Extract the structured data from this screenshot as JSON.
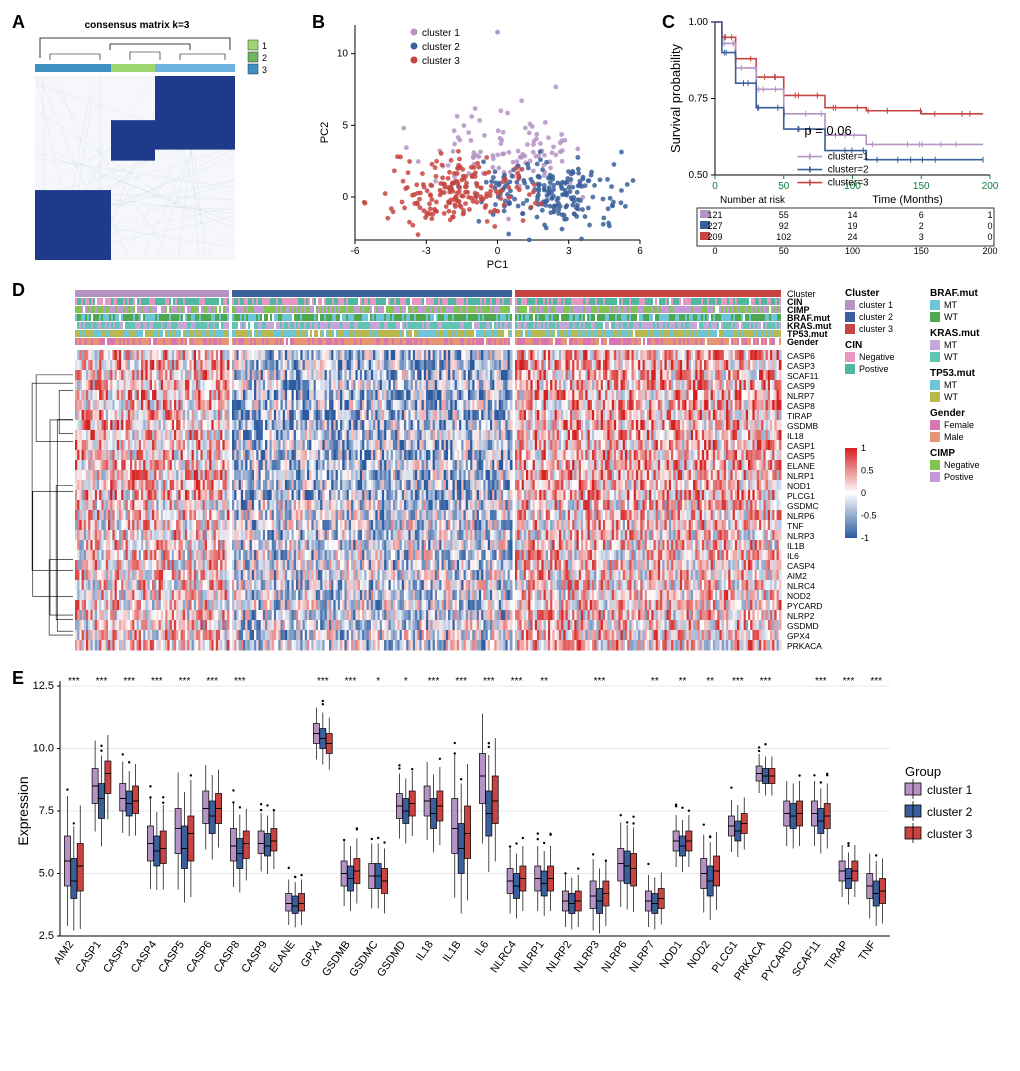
{
  "panelA": {
    "label": "A",
    "title": "consensus matrix k=3",
    "title_fontsize": 10,
    "legend_items": [
      "1",
      "2",
      "3"
    ],
    "legend_colors": [
      "#9ed670",
      "#6fb75e",
      "#3f8fc5"
    ],
    "cluster_bar_colors": [
      "#3f8fc5",
      "#9ed670",
      "#6db5e0"
    ],
    "cluster_bar_widths": [
      0.38,
      0.22,
      0.4
    ],
    "matrix_color": "#1e3a8a",
    "background": "#ffffff"
  },
  "panelB": {
    "label": "B",
    "type": "scatter",
    "xlabel": "PC1",
    "ylabel": "PC2",
    "xlim": [
      -6,
      6
    ],
    "ylim": [
      -3,
      12
    ],
    "xticks": [
      -6,
      -3,
      0,
      3,
      6
    ],
    "yticks": [
      0,
      5,
      10
    ],
    "legend": [
      {
        "label": "cluster 1",
        "color": "#b593c4"
      },
      {
        "label": "cluster 2",
        "color": "#3a5f9a"
      },
      {
        "label": "cluster 3",
        "color": "#c74440"
      }
    ],
    "label_fontsize": 11
  },
  "panelC": {
    "label": "C",
    "type": "km",
    "ylabel": "Survival probability",
    "xlabel": "Time (Months)",
    "ylim": [
      0.5,
      1.0
    ],
    "yticks": [
      0.5,
      0.75,
      1.0
    ],
    "xlim": [
      0,
      200
    ],
    "xticks": [
      0,
      50,
      100,
      150,
      200
    ],
    "pvalue_text": "p = 0.06",
    "legend": [
      {
        "label": "cluster=1",
        "color": "#b593c4"
      },
      {
        "label": "cluster=2",
        "color": "#3a5f9a"
      },
      {
        "label": "cluster=3",
        "color": "#c74440"
      }
    ],
    "risk_title": "Number at risk",
    "risk_table": [
      {
        "color": "#b593c4",
        "counts": [
          121,
          55,
          14,
          6,
          1
        ]
      },
      {
        "color": "#3a5f9a",
        "counts": [
          227,
          92,
          19,
          2,
          0
        ]
      },
      {
        "color": "#c74440",
        "counts": [
          209,
          102,
          24,
          3,
          0
        ]
      }
    ],
    "curves": {
      "cluster1": [
        [
          0,
          1.0
        ],
        [
          5,
          0.93
        ],
        [
          15,
          0.85
        ],
        [
          30,
          0.78
        ],
        [
          50,
          0.7
        ],
        [
          80,
          0.63
        ],
        [
          110,
          0.6
        ],
        [
          150,
          0.6
        ],
        [
          195,
          0.6
        ]
      ],
      "cluster2": [
        [
          0,
          1.0
        ],
        [
          5,
          0.9
        ],
        [
          15,
          0.8
        ],
        [
          30,
          0.72
        ],
        [
          50,
          0.65
        ],
        [
          80,
          0.58
        ],
        [
          110,
          0.55
        ],
        [
          150,
          0.55
        ],
        [
          195,
          0.55
        ]
      ],
      "cluster3": [
        [
          0,
          1.0
        ],
        [
          5,
          0.95
        ],
        [
          15,
          0.88
        ],
        [
          30,
          0.82
        ],
        [
          50,
          0.76
        ],
        [
          80,
          0.72
        ],
        [
          110,
          0.71
        ],
        [
          150,
          0.7
        ],
        [
          195,
          0.7
        ]
      ]
    }
  },
  "panelD": {
    "label": "D",
    "type": "heatmap",
    "genes": [
      "CASP6",
      "CASP3",
      "SCAF11",
      "CASP9",
      "NLRP7",
      "CASP8",
      "TIRAP",
      "GSDMB",
      "IL18",
      "CASP1",
      "CASP5",
      "ELANE",
      "NLRP1",
      "NOD1",
      "PLCG1",
      "GSDMC",
      "NLRP6",
      "TNF",
      "NLRP3",
      "IL1B",
      "IL6",
      "CASP4",
      "AIM2",
      "NLRC4",
      "NOD2",
      "PYCARD",
      "NLRP2",
      "GSDMD",
      "GPX4",
      "PRKACA"
    ],
    "annotations": [
      "Cluster",
      "CIN",
      "CIMP",
      "BRAF.mut",
      "KRAS.mut",
      "TP53.mut",
      "Gender"
    ],
    "colorbar": {
      "min": -1,
      "max": 1,
      "ticks": [
        -1,
        -0.5,
        0,
        0.5,
        1
      ],
      "low": "#2b5aa0",
      "mid": "#ffffff",
      "high": "#d62020"
    },
    "legend_groups": {
      "Cluster": [
        {
          "label": "cluster 1",
          "color": "#b593c4"
        },
        {
          "label": "cluster 2",
          "color": "#3a5f9a"
        },
        {
          "label": "cluster 3",
          "color": "#c74440"
        }
      ],
      "CIN": [
        {
          "label": "Negative",
          "color": "#e599c2"
        },
        {
          "label": "Postive",
          "color": "#4fb8a0"
        }
      ],
      "BRAF.mut": [
        {
          "label": "MT",
          "color": "#6cc5d9"
        },
        {
          "label": "WT",
          "color": "#4fa84f"
        }
      ],
      "KRAS.mut": [
        {
          "label": "MT",
          "color": "#c5a8d9"
        },
        {
          "label": "WT",
          "color": "#5fc5b0"
        }
      ],
      "TP53.mut": [
        {
          "label": "MT",
          "color": "#6cc5d9"
        },
        {
          "label": "WT",
          "color": "#b8b84f"
        }
      ],
      "Gender": [
        {
          "label": "Female",
          "color": "#d975b0"
        },
        {
          "label": "Male",
          "color": "#e89575"
        }
      ],
      "CIMP": [
        {
          "label": "Negative",
          "color": "#7fc54f"
        },
        {
          "label": "Postive",
          "color": "#c599d9"
        }
      ]
    },
    "block_widths": [
      0.22,
      0.4,
      0.38
    ]
  },
  "panelE": {
    "label": "E",
    "type": "boxplot",
    "ylabel": "Expression",
    "ylim": [
      2.5,
      12.5
    ],
    "yticks": [
      2.5,
      5.0,
      7.5,
      10.0,
      12.5
    ],
    "genes": [
      "AIM2",
      "CASP1",
      "CASP3",
      "CASP4",
      "CASP5",
      "CASP6",
      "CASP8",
      "CASP9",
      "ELANE",
      "GPX4",
      "GSDMB",
      "GSDMC",
      "GSDMD",
      "IL18",
      "IL1B",
      "IL6",
      "NLRC4",
      "NLRP1",
      "NLRP2",
      "NLRP3",
      "NLRP6",
      "NLRP7",
      "NOD1",
      "NOD2",
      "PLCG1",
      "PRKACA",
      "PYCARD",
      "SCAF11",
      "TIRAP",
      "TNF"
    ],
    "sig": [
      "***",
      "***",
      "***",
      "***",
      "***",
      "***",
      "***",
      "",
      "",
      "***",
      "***",
      "*",
      "*",
      "***",
      "***",
      "***",
      "***",
      "**",
      "",
      "***",
      "",
      "**",
      "**",
      "**",
      "***",
      "***",
      "",
      "***",
      "***",
      "***"
    ],
    "legend_title": "Group",
    "legend": [
      {
        "label": "cluster 1",
        "color": "#b593c4"
      },
      {
        "label": "cluster 2",
        "color": "#3a5f9a"
      },
      {
        "label": "cluster 3",
        "color": "#c74440"
      }
    ],
    "box_data": {
      "AIM2": [
        [
          4.5,
          5.5,
          6.5
        ],
        [
          4.0,
          4.7,
          5.6
        ],
        [
          4.3,
          5.3,
          6.2
        ]
      ],
      "CASP1": [
        [
          7.8,
          8.5,
          9.2
        ],
        [
          7.2,
          8.0,
          8.6
        ],
        [
          8.2,
          9.0,
          9.5
        ]
      ],
      "CASP3": [
        [
          7.5,
          8.0,
          8.6
        ],
        [
          7.3,
          7.8,
          8.3
        ],
        [
          7.4,
          7.9,
          8.5
        ]
      ],
      "CASP4": [
        [
          5.5,
          6.2,
          6.9
        ],
        [
          5.3,
          5.9,
          6.5
        ],
        [
          5.4,
          6.0,
          6.7
        ]
      ],
      "CASP5": [
        [
          5.8,
          6.8,
          7.6
        ],
        [
          5.2,
          6.0,
          6.9
        ],
        [
          5.5,
          6.6,
          7.3
        ]
      ],
      "CASP6": [
        [
          7.0,
          7.6,
          8.3
        ],
        [
          6.6,
          7.3,
          7.9
        ],
        [
          7.0,
          7.6,
          8.2
        ]
      ],
      "CASP8": [
        [
          5.5,
          6.1,
          6.8
        ],
        [
          5.2,
          5.8,
          6.4
        ],
        [
          5.6,
          6.2,
          6.7
        ]
      ],
      "CASP9": [
        [
          5.8,
          6.2,
          6.7
        ],
        [
          5.7,
          6.1,
          6.6
        ],
        [
          5.9,
          6.3,
          6.8
        ]
      ],
      "ELANE": [
        [
          3.5,
          3.8,
          4.2
        ],
        [
          3.4,
          3.7,
          4.1
        ],
        [
          3.5,
          3.8,
          4.2
        ]
      ],
      "GPX4": [
        [
          10.2,
          10.6,
          11.0
        ],
        [
          10.0,
          10.4,
          10.8
        ],
        [
          9.8,
          10.2,
          10.6
        ]
      ],
      "GSDMB": [
        [
          4.5,
          5.0,
          5.5
        ],
        [
          4.3,
          4.8,
          5.3
        ],
        [
          4.6,
          5.1,
          5.6
        ]
      ],
      "GSDMC": [
        [
          4.4,
          4.9,
          5.4
        ],
        [
          4.4,
          4.9,
          5.4
        ],
        [
          4.2,
          4.7,
          5.2
        ]
      ],
      "GSDMD": [
        [
          7.2,
          7.7,
          8.2
        ],
        [
          7.0,
          7.5,
          8.0
        ],
        [
          7.3,
          7.8,
          8.3
        ]
      ],
      "IL18": [
        [
          7.3,
          7.9,
          8.5
        ],
        [
          6.8,
          7.4,
          8.0
        ],
        [
          7.1,
          7.7,
          8.3
        ]
      ],
      "IL1B": [
        [
          5.8,
          6.8,
          8.0
        ],
        [
          5.0,
          6.0,
          7.0
        ],
        [
          5.6,
          6.6,
          7.7
        ]
      ],
      "IL6": [
        [
          7.8,
          8.9,
          9.8
        ],
        [
          6.5,
          7.4,
          8.3
        ],
        [
          7.0,
          7.9,
          8.9
        ]
      ],
      "NLRC4": [
        [
          4.2,
          4.7,
          5.2
        ],
        [
          4.0,
          4.5,
          5.0
        ],
        [
          4.3,
          4.8,
          5.3
        ]
      ],
      "NLRP1": [
        [
          4.3,
          4.8,
          5.3
        ],
        [
          4.1,
          4.6,
          5.1
        ],
        [
          4.3,
          4.8,
          5.3
        ]
      ],
      "NLRP2": [
        [
          3.5,
          3.9,
          4.3
        ],
        [
          3.4,
          3.8,
          4.2
        ],
        [
          3.5,
          3.9,
          4.3
        ]
      ],
      "NLRP3": [
        [
          3.6,
          4.1,
          4.7
        ],
        [
          3.4,
          3.9,
          4.4
        ],
        [
          3.7,
          4.2,
          4.7
        ]
      ],
      "NLRP6": [
        [
          4.7,
          5.4,
          6.0
        ],
        [
          4.6,
          5.3,
          5.9
        ],
        [
          4.5,
          5.2,
          5.8
        ]
      ],
      "NLRP7": [
        [
          3.5,
          3.9,
          4.3
        ],
        [
          3.4,
          3.8,
          4.2
        ],
        [
          3.6,
          4.0,
          4.4
        ]
      ],
      "NOD1": [
        [
          5.9,
          6.3,
          6.7
        ],
        [
          5.7,
          6.1,
          6.5
        ],
        [
          5.9,
          6.3,
          6.7
        ]
      ],
      "NOD2": [
        [
          4.4,
          5.0,
          5.6
        ],
        [
          4.1,
          4.7,
          5.3
        ],
        [
          4.5,
          5.1,
          5.7
        ]
      ],
      "PLCG1": [
        [
          6.5,
          6.9,
          7.3
        ],
        [
          6.3,
          6.7,
          7.1
        ],
        [
          6.6,
          7.0,
          7.4
        ]
      ],
      "PRKACA": [
        [
          8.7,
          9.0,
          9.3
        ],
        [
          8.6,
          8.9,
          9.2
        ],
        [
          8.6,
          8.9,
          9.2
        ]
      ],
      "PYCARD": [
        [
          6.9,
          7.4,
          7.9
        ],
        [
          6.8,
          7.3,
          7.8
        ],
        [
          6.9,
          7.4,
          7.9
        ]
      ],
      "SCAF11": [
        [
          6.9,
          7.4,
          7.9
        ],
        [
          6.6,
          7.1,
          7.6
        ],
        [
          6.8,
          7.3,
          7.8
        ]
      ],
      "TIRAP": [
        [
          4.7,
          5.1,
          5.5
        ],
        [
          4.4,
          4.8,
          5.2
        ],
        [
          4.7,
          5.1,
          5.5
        ]
      ],
      "TNF": [
        [
          4.0,
          4.5,
          5.0
        ],
        [
          3.7,
          4.2,
          4.7
        ],
        [
          3.8,
          4.3,
          4.8
        ]
      ]
    }
  }
}
